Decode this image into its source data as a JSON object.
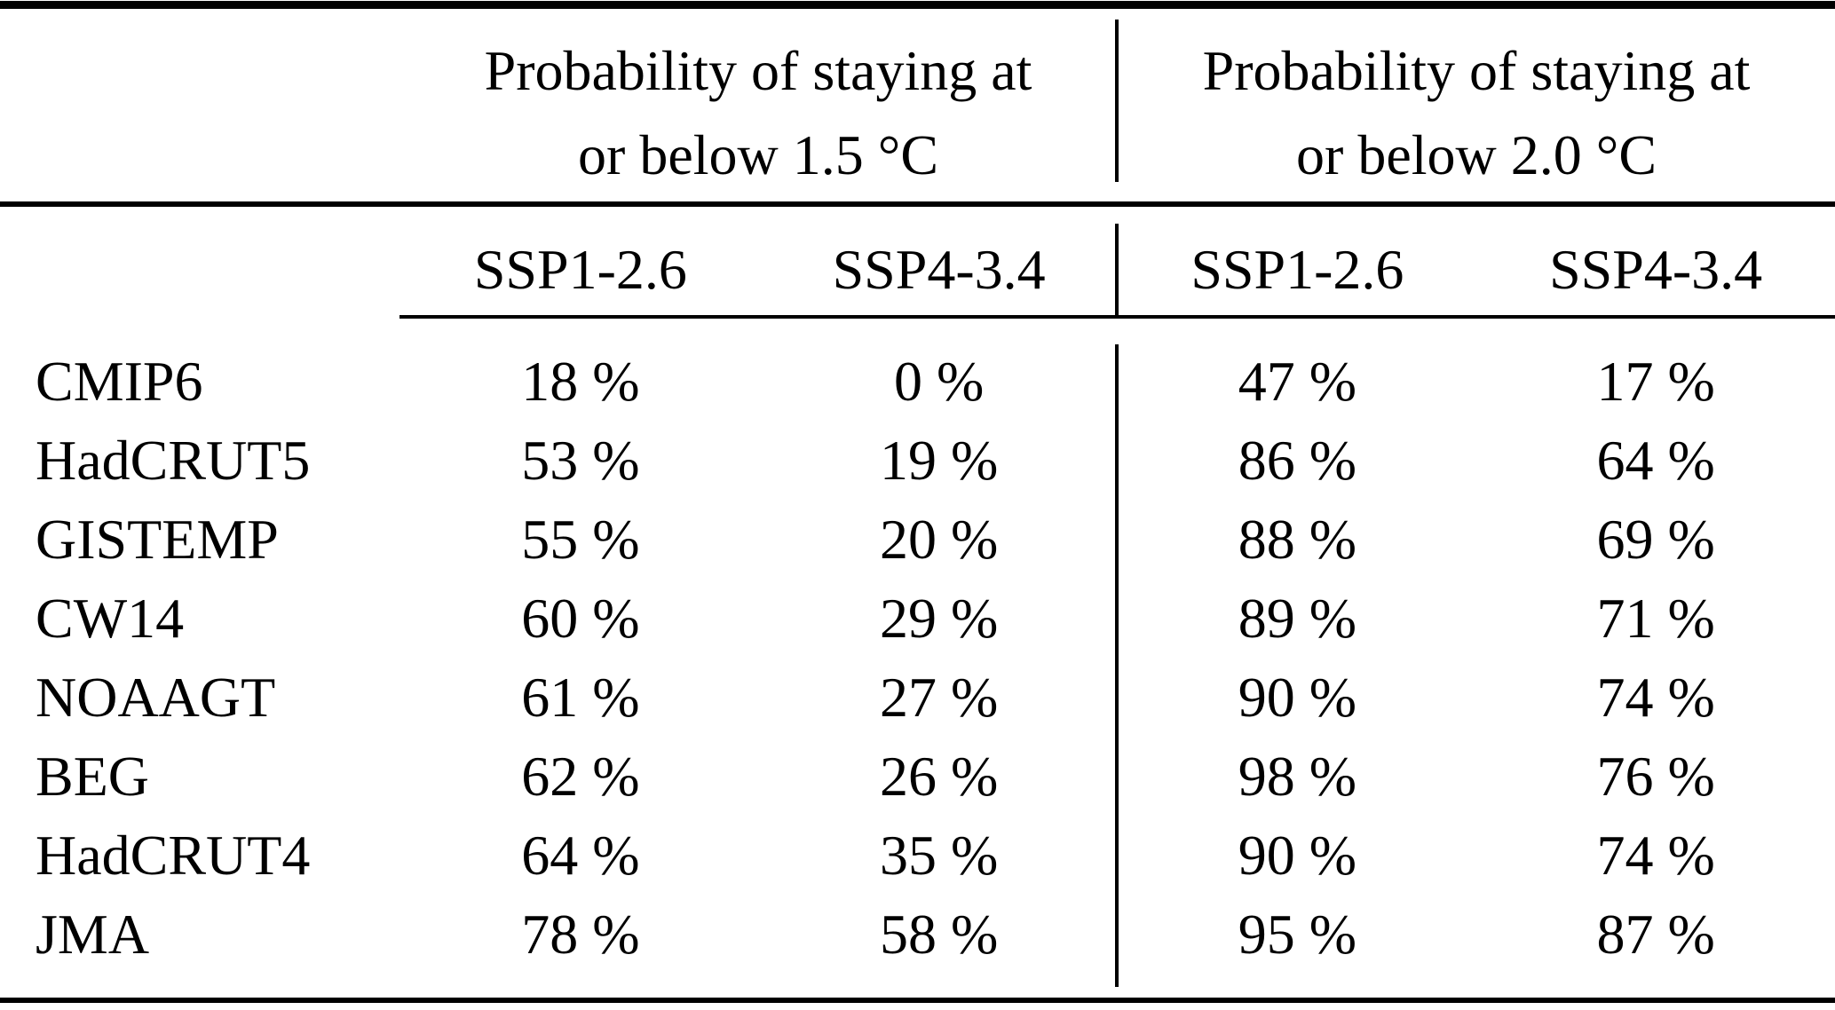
{
  "table": {
    "colors": {
      "text": "#000000",
      "background": "#ffffff",
      "rule": "#000000"
    },
    "col_groups": [
      {
        "title_line1": "Probability of staying at",
        "title_line2": "or below 1.5 °C"
      },
      {
        "title_line1": "Probability of staying at",
        "title_line2": "or below 2.0 °C"
      }
    ],
    "sub_headers": [
      "SSP1-2.6",
      "SSP4-3.4",
      "SSP1-2.6",
      "SSP4-3.4"
    ],
    "rows": [
      {
        "label": "CMIP6",
        "values": [
          "18 %",
          "0 %",
          "47 %",
          "17 %"
        ]
      },
      {
        "label": "HadCRUT5",
        "values": [
          "53 %",
          "19 %",
          "86 %",
          "64 %"
        ]
      },
      {
        "label": "GISTEMP",
        "values": [
          "55 %",
          "20 %",
          "88 %",
          "69 %"
        ]
      },
      {
        "label": "CW14",
        "values": [
          "60 %",
          "29 %",
          "89 %",
          "71 %"
        ]
      },
      {
        "label": "NOAAGT",
        "values": [
          "61 %",
          "27 %",
          "90 %",
          "74 %"
        ]
      },
      {
        "label": "BEG",
        "values": [
          "62 %",
          "26 %",
          "98 %",
          "76 %"
        ]
      },
      {
        "label": "HadCRUT4",
        "values": [
          "64 %",
          "35 %",
          "90 %",
          "74 %"
        ]
      },
      {
        "label": "JMA",
        "values": [
          "78 %",
          "58 %",
          "95 %",
          "87 %"
        ]
      }
    ]
  },
  "chart_data": {
    "type": "table",
    "column_groups": [
      "Probability of staying at or below 1.5 °C",
      "Probability of staying at or below 2.0 °C"
    ],
    "columns": [
      "SSP1-2.6 (1.5 °C)",
      "SSP4-3.4 (1.5 °C)",
      "SSP1-2.6 (2.0 °C)",
      "SSP4-3.4 (2.0 °C)"
    ],
    "row_labels": [
      "CMIP6",
      "HadCRUT5",
      "GISTEMP",
      "CW14",
      "NOAAGT",
      "BEG",
      "HadCRUT4",
      "JMA"
    ],
    "values_percent": [
      [
        18,
        0,
        47,
        17
      ],
      [
        53,
        19,
        86,
        64
      ],
      [
        55,
        20,
        88,
        69
      ],
      [
        60,
        29,
        89,
        71
      ],
      [
        61,
        27,
        90,
        74
      ],
      [
        62,
        26,
        98,
        76
      ],
      [
        64,
        35,
        90,
        74
      ],
      [
        78,
        58,
        95,
        87
      ]
    ]
  }
}
